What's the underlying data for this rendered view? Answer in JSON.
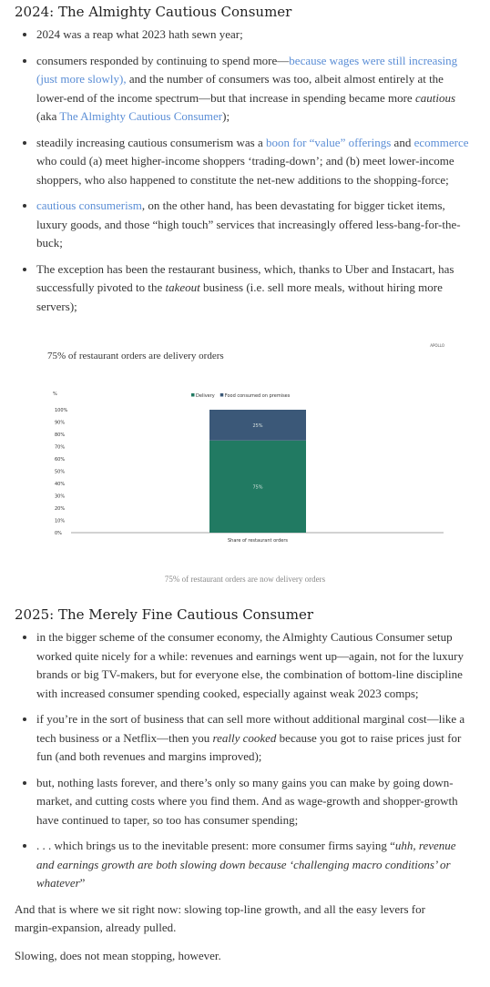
{
  "sections": [
    {
      "heading": "2024: The Almighty Cautious Consumer",
      "items": [
        [
          {
            "text": "2024 was a reap what 2023 hath sewn year;"
          }
        ],
        [
          {
            "text": "consumers responded by continuing to spend more—"
          },
          {
            "text": "because wages were still increasing (just more slowly),",
            "style": "link"
          },
          {
            "text": " and the number of consumers was too, albeit almost entirely at the lower-end of the income spectrum—but that increase in spending became more "
          },
          {
            "text": "cautious",
            "style": "italic"
          },
          {
            "text": " (aka "
          },
          {
            "text": "The Almighty Cautious Consumer",
            "style": "link"
          },
          {
            "text": ");"
          }
        ],
        [
          {
            "text": "steadily increasing cautious consumerism was a "
          },
          {
            "text": "boon for “value” offerings",
            "style": "link"
          },
          {
            "text": " and "
          },
          {
            "text": "ecommerce",
            "style": "link"
          },
          {
            "text": " who could (a) meet higher-income shoppers ‘trading-down’; and (b) meet lower-income shoppers, who also happened to constitute the net-new additions to the shopping-force;"
          }
        ],
        [
          {
            "text": "cautious consumerism",
            "style": "link"
          },
          {
            "text": ", on the other hand, has been devastating for bigger ticket items, luxury goods, and those “high touch” services that increasingly offered less-bang-for-the-buck;"
          }
        ],
        [
          {
            "text": "The exception has been the restaurant business, which, thanks to Uber and Instacart, has successfully pivoted to the "
          },
          {
            "text": "takeout",
            "style": "italic"
          },
          {
            "text": " business (i.e. sell more meals, without hiring more servers);"
          }
        ]
      ]
    },
    {
      "heading": "2025: The Merely Fine Cautious Consumer",
      "items": [
        [
          {
            "text": "in the bigger scheme of the consumer economy, the Almighty Cautious Consumer setup worked quite nicely for a while: revenues and earnings went up—again, not for the luxury brands or big TV-makers, but for everyone else, the combination of bottom-line discipline with increased consumer spending cooked, especially against weak 2023 comps;"
          }
        ],
        [
          {
            "text": "if you’re in the sort of business that can sell more without additional marginal cost—like a tech business or a Netflix—then you "
          },
          {
            "text": "really cooked",
            "style": "italic"
          },
          {
            "text": " because you got to raise prices just for fun (and both revenues and margins improved);"
          }
        ],
        [
          {
            "text": "but, nothing lasts forever, and there’s only so many gains you can make by going down-market, and cutting costs where you find them. And as wage-growth and shopper-growth have continued to taper, so too has consumer spending;"
          }
        ],
        [
          {
            "text": ". . . which brings us to the inevitable present: more consumer firms saying “"
          },
          {
            "text": "uhh, revenue and earnings growth are both slowing down because ‘challenging macro conditions’ or whatever",
            "style": "italic"
          },
          {
            "text": "”"
          }
        ]
      ]
    }
  ],
  "paragraphs": [
    "And that is where we sit right now: slowing top-line growth, and all the easy levers for margin-expansion, already pulled.",
    "Slowing, does not mean stopping, however."
  ],
  "chart_data": {
    "type": "stacked_bar",
    "title": "75% of restaurant orders are delivery orders",
    "source": "APOLLO",
    "caption": "75% of restaurant orders are now delivery orders",
    "y_label": "%",
    "categories": [
      "Share of restaurant orders"
    ],
    "series": [
      {
        "name": "Delivery",
        "color": "#217a62",
        "values": [
          75
        ],
        "value_labels": [
          "75%"
        ]
      },
      {
        "name": "Food consumed on premises",
        "color": "#3b5878",
        "values": [
          25
        ],
        "value_labels": [
          "25%"
        ]
      }
    ],
    "ylim": [
      0,
      100
    ],
    "yticks": [
      {
        "value": 0,
        "label": "0%"
      },
      {
        "value": 10,
        "label": "10%"
      },
      {
        "value": 20,
        "label": "20%"
      },
      {
        "value": 30,
        "label": "30%"
      },
      {
        "value": 40,
        "label": "40%"
      },
      {
        "value": 50,
        "label": "50%"
      },
      {
        "value": 60,
        "label": "60%"
      },
      {
        "value": 70,
        "label": "70%"
      },
      {
        "value": 80,
        "label": "80%"
      },
      {
        "value": 90,
        "label": "90%"
      },
      {
        "value": 100,
        "label": "100%"
      }
    ]
  }
}
